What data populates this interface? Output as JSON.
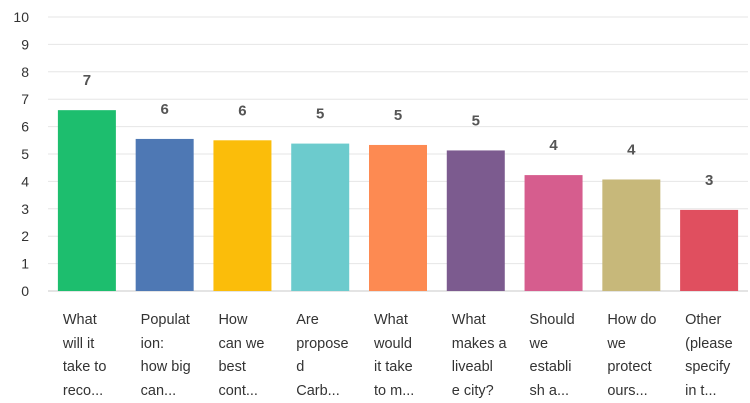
{
  "chart_data": {
    "type": "bar",
    "categories": [
      "What will it take to reco...",
      "Population: how big can...",
      "How can we best cont...",
      "Are proposed Carb...",
      "What would it take to m...",
      "What makes a liveable city?",
      "Should we establish a...",
      "How do we protect ours...",
      "Other (please specify in t..."
    ],
    "category_lines": [
      [
        "What",
        "will it",
        "take to",
        "reco..."
      ],
      [
        "Populat",
        "ion:",
        "how big",
        "can..."
      ],
      [
        "How",
        "can we",
        "best",
        "cont..."
      ],
      [
        "Are",
        "propose",
        "d",
        "Carb..."
      ],
      [
        "What",
        "would",
        "it take",
        "to m..."
      ],
      [
        "What",
        "makes a",
        "liveabl",
        "e city?"
      ],
      [
        "Should",
        "we",
        "establi",
        "sh a..."
      ],
      [
        "How do",
        "we",
        "protect",
        "ours..."
      ],
      [
        "Other",
        "(please",
        "specify",
        "in t..."
      ]
    ],
    "values": [
      6.6,
      5.55,
      5.5,
      5.38,
      5.33,
      5.13,
      4.23,
      4.07,
      2.96
    ],
    "data_labels": [
      "7",
      "6",
      "6",
      "5",
      "5",
      "5",
      "4",
      "4",
      "3"
    ],
    "colors": [
      "#1dbe6e",
      "#4e78b4",
      "#fbbd0a",
      "#6ccbcd",
      "#fd8a52",
      "#7c5b8f",
      "#d65d8e",
      "#c7b87a",
      "#e04f5f"
    ],
    "ylim": [
      0,
      10
    ],
    "yticks": [
      0,
      1,
      2,
      3,
      4,
      5,
      6,
      7,
      8,
      9,
      10
    ],
    "grid": true,
    "title": "",
    "xlabel": "",
    "ylabel": ""
  }
}
